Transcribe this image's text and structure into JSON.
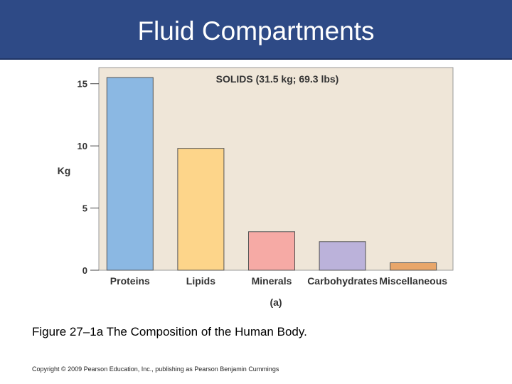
{
  "header": {
    "title": "Fluid Compartments"
  },
  "chart_data": {
    "type": "bar",
    "title": "SOLIDS (31.5 kg; 69.3 lbs)",
    "subtitle": "(a)",
    "xlabel": "",
    "ylabel": "Kg",
    "categories": [
      "Proteins",
      "Lipids",
      "Minerals",
      "Carbohydrates",
      "Miscellaneous"
    ],
    "values": [
      15.5,
      9.8,
      3.1,
      2.3,
      0.6
    ],
    "bar_colors": [
      "#8bb8e3",
      "#fdd58a",
      "#f6aaa5",
      "#bbb2da",
      "#e8a66a"
    ],
    "background_color": "#efe6d8",
    "yticks": [
      0,
      5,
      10,
      15
    ],
    "ylim": [
      0,
      16.3
    ],
    "grid": false,
    "legend": "none"
  },
  "caption": "Figure 27–1a The Composition of the Human Body.",
  "copyright": "Copyright © 2009 Pearson Education, Inc., publishing as Pearson Benjamin Cummings"
}
